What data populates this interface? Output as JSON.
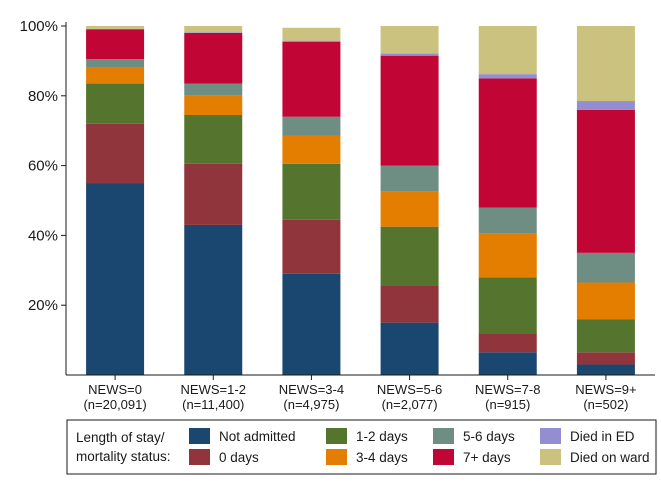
{
  "chart_data": {
    "type": "bar",
    "stacked": true,
    "categories": [
      {
        "line1": "NEWS=0",
        "line2": "(n=20,091)"
      },
      {
        "line1": "NEWS=1-2",
        "line2": "(n=11,400)"
      },
      {
        "line1": "NEWS=3-4",
        "line2": "(n=4,975)"
      },
      {
        "line1": "NEWS=5-6",
        "line2": "(n=2,077)"
      },
      {
        "line1": "NEWS=7-8",
        "line2": "(n=915)"
      },
      {
        "line1": "NEWS=9+",
        "line2": "(n=502)"
      }
    ],
    "series": [
      {
        "name": "Not admitted",
        "color": "#1a476f",
        "values": [
          55,
          43,
          29,
          15,
          6.5,
          3
        ]
      },
      {
        "name": "0 days",
        "color": "#90353b",
        "values": [
          17,
          17.5,
          15.5,
          10.5,
          5.5,
          3.5
        ]
      },
      {
        "name": "1-2 days",
        "color": "#55752f",
        "values": [
          11.5,
          14,
          16,
          17,
          16,
          9.5
        ]
      },
      {
        "name": "3-4 days",
        "color": "#e37e00",
        "values": [
          4.5,
          5.5,
          8,
          10,
          12.5,
          10.5
        ]
      },
      {
        "name": "5-6 days",
        "color": "#6e8e84",
        "values": [
          2.5,
          3.5,
          5.5,
          7.5,
          7.5,
          8.5
        ]
      },
      {
        "name": "7+ days",
        "color": "#c10534",
        "values": [
          8.5,
          14.5,
          21.5,
          31.5,
          37,
          41
        ]
      },
      {
        "name": "Died in ED",
        "color": "#938dd2",
        "values": [
          0.2,
          0.2,
          0.3,
          0.6,
          1.2,
          2.5
        ]
      },
      {
        "name": "Died on ward",
        "color": "#cac27e",
        "values": [
          0.8,
          1.8,
          3.7,
          7.9,
          13.8,
          21.5
        ]
      }
    ],
    "y_ticks": [
      "20%",
      "40%",
      "60%",
      "80%",
      "100%"
    ],
    "ylim": [
      0,
      100
    ],
    "grid": false,
    "legend": {
      "title_line1": "Length of stay/",
      "title_line2": "mortality status:",
      "placement": "bottom",
      "columns": 4
    }
  }
}
